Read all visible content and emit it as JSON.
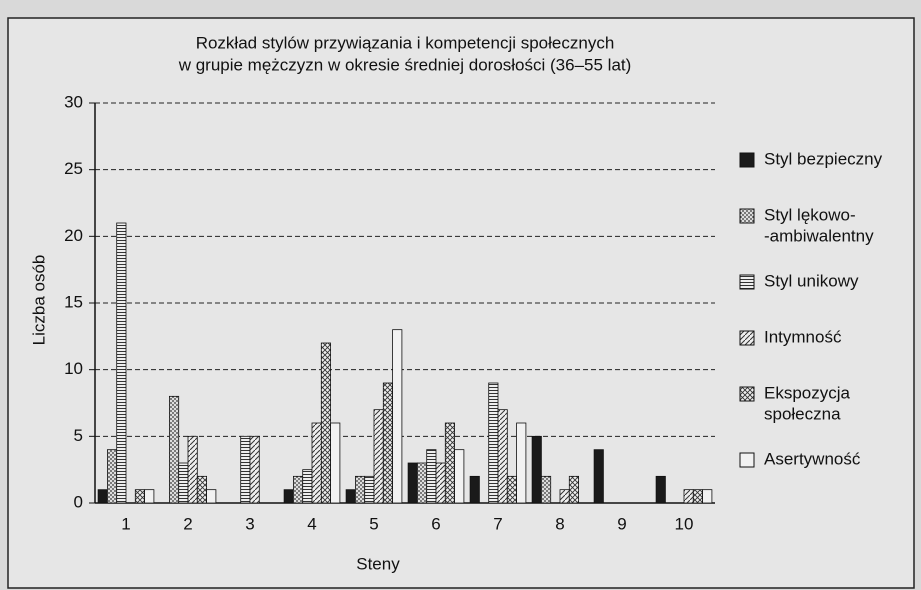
{
  "chart_data": {
    "type": "bar",
    "title": [
      "Rozkład stylów przywiązania i kompetencji społecznych",
      "w grupie mężczyzn w okresie średniej dorosłości (36–55 lat)"
    ],
    "x_label": "Steny",
    "y_label": "Liczba osób",
    "categories": [
      "1",
      "2",
      "3",
      "4",
      "5",
      "6",
      "7",
      "8",
      "9",
      "10"
    ],
    "series": [
      {
        "name": "Styl bezpieczny",
        "color": "#1a1a1a",
        "pattern": "solid",
        "values": [
          1,
          0,
          0,
          1,
          1,
          3,
          2,
          5,
          4,
          2
        ]
      },
      {
        "name": [
          "Styl lękowo-",
          "-ambiwalentny"
        ],
        "color": "#888888",
        "pattern": "dots",
        "values": [
          4,
          8,
          0,
          2,
          2,
          3,
          0,
          2,
          0,
          0
        ]
      },
      {
        "name": "Styl unikowy",
        "color": "#555555",
        "pattern": "hlines",
        "values": [
          21,
          3,
          5,
          2.5,
          2,
          4,
          9,
          0,
          0,
          0
        ]
      },
      {
        "name": "Intymność",
        "color": "#555555",
        "pattern": "diag",
        "values": [
          0,
          5,
          5,
          6,
          7,
          3,
          7,
          1,
          0,
          1
        ]
      },
      {
        "name": [
          "Ekspozycja",
          "społeczna"
        ],
        "color": "#444444",
        "pattern": "cross",
        "values": [
          1,
          2,
          0,
          12,
          9,
          6,
          2,
          2,
          0,
          1
        ]
      },
      {
        "name": "Asertywność",
        "color": "#f2f2f2",
        "pattern": "none",
        "values": [
          1,
          1,
          0,
          6,
          13,
          4,
          6,
          0,
          0,
          1
        ]
      }
    ],
    "ylim": [
      0,
      30
    ],
    "yticks": [
      0,
      5,
      10,
      15,
      20,
      25,
      30
    ],
    "grid": true,
    "legend": "right"
  }
}
